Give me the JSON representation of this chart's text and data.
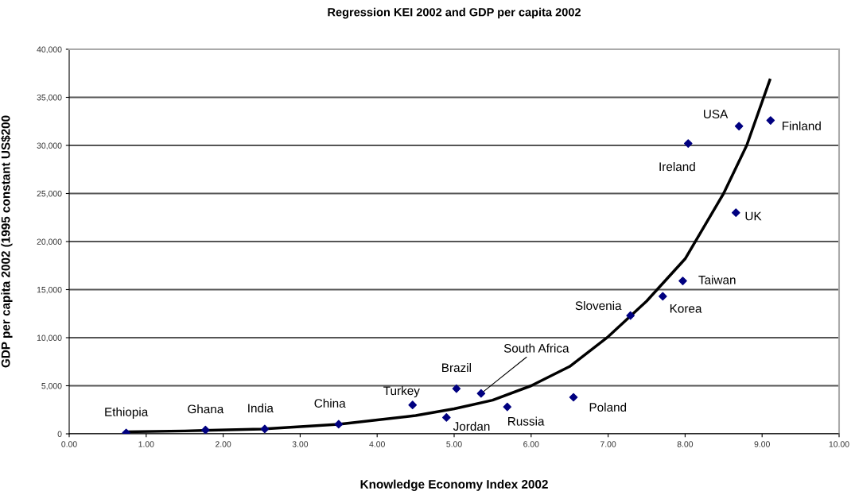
{
  "chart_data": {
    "type": "scatter",
    "title": "Regression KEI 2002 and GDP per capita 2002",
    "xlabel": "Knowledge Economy Index 2002",
    "ylabel": "GDP per capita 2002 (1995 constant US$200",
    "xlim": [
      0,
      10
    ],
    "ylim": [
      0,
      40000
    ],
    "xticks": [
      {
        "value": 0,
        "label": "0.00"
      },
      {
        "value": 1,
        "label": "1.00"
      },
      {
        "value": 2,
        "label": "2.00"
      },
      {
        "value": 3,
        "label": "3.00"
      },
      {
        "value": 4,
        "label": "4.00"
      },
      {
        "value": 5,
        "label": "5.00"
      },
      {
        "value": 6,
        "label": "6.00"
      },
      {
        "value": 7,
        "label": "7.00"
      },
      {
        "value": 8,
        "label": "8.00"
      },
      {
        "value": 9,
        "label": "9.00"
      },
      {
        "value": 10,
        "label": "10.00"
      }
    ],
    "yticks": [
      0,
      {
        "value": 5000,
        "label": "5,000"
      },
      {
        "value": 10000,
        "label": "10,000"
      },
      {
        "value": 15000,
        "label": "15,000"
      },
      {
        "value": 20000,
        "label": "20,000"
      },
      {
        "value": 25000,
        "label": "25,000"
      },
      {
        "value": 30000,
        "label": "30,000"
      },
      {
        "value": 35000,
        "label": "35,000"
      },
      {
        "value": 40000,
        "label": "40,000"
      }
    ],
    "grid": "y",
    "series": [
      {
        "color": "#000080",
        "marker": "diamond",
        "x": [
          0.74,
          1.77,
          2.54,
          3.5,
          4.46,
          4.9,
          5.03,
          5.35,
          5.69,
          6.55,
          7.29,
          7.71,
          7.97,
          8.04,
          8.66,
          8.7,
          9.11
        ],
        "values": [
          100,
          400,
          500,
          1000,
          3000,
          1700,
          4700,
          4200,
          2800,
          3800,
          12300,
          14300,
          15900,
          30200,
          23000,
          32000,
          32600
        ]
      },
      {
        "type": "line",
        "color": "#000000",
        "marker": "none",
        "line_style": "solid",
        "x": [
          0.75,
          1.5,
          2.5,
          3.5,
          4.5,
          5.0,
          5.5,
          6.0,
          6.5,
          7.0,
          7.5,
          8.0,
          8.5,
          8.8,
          9.1
        ],
        "values": [
          200,
          300,
          500,
          1000,
          1900,
          2600,
          3500,
          5000,
          7000,
          10100,
          13800,
          18200,
          25000,
          30000,
          36800
        ]
      }
    ],
    "annotations": [
      {
        "text": "Ethiopia",
        "x": 0.74,
        "y": 100
      },
      {
        "text": "Ghana",
        "x": 1.77,
        "y": 400
      },
      {
        "text": "India",
        "x": 2.54,
        "y": 500
      },
      {
        "text": "China",
        "x": 3.5,
        "y": 1000
      },
      {
        "text": "Turkey",
        "x": 4.46,
        "y": 3000
      },
      {
        "text": "Jordan",
        "x": 4.9,
        "y": 1700
      },
      {
        "text": "Brazil",
        "x": 5.03,
        "y": 4700
      },
      {
        "text": "South Africa",
        "x": 5.35,
        "y": 4200
      },
      {
        "text": "Russia",
        "x": 5.69,
        "y": 2800
      },
      {
        "text": "Poland",
        "x": 6.55,
        "y": 3800
      },
      {
        "text": "Slovenia",
        "x": 7.29,
        "y": 12300
      },
      {
        "text": "Korea",
        "x": 7.71,
        "y": 14300
      },
      {
        "text": "Taiwan",
        "x": 7.97,
        "y": 15900
      },
      {
        "text": "Ireland",
        "x": 8.04,
        "y": 30200
      },
      {
        "text": "UK",
        "x": 8.66,
        "y": 23000
      },
      {
        "text": "USA",
        "x": 8.7,
        "y": 32000
      },
      {
        "text": "Finland",
        "x": 9.11,
        "y": 32600
      }
    ]
  }
}
